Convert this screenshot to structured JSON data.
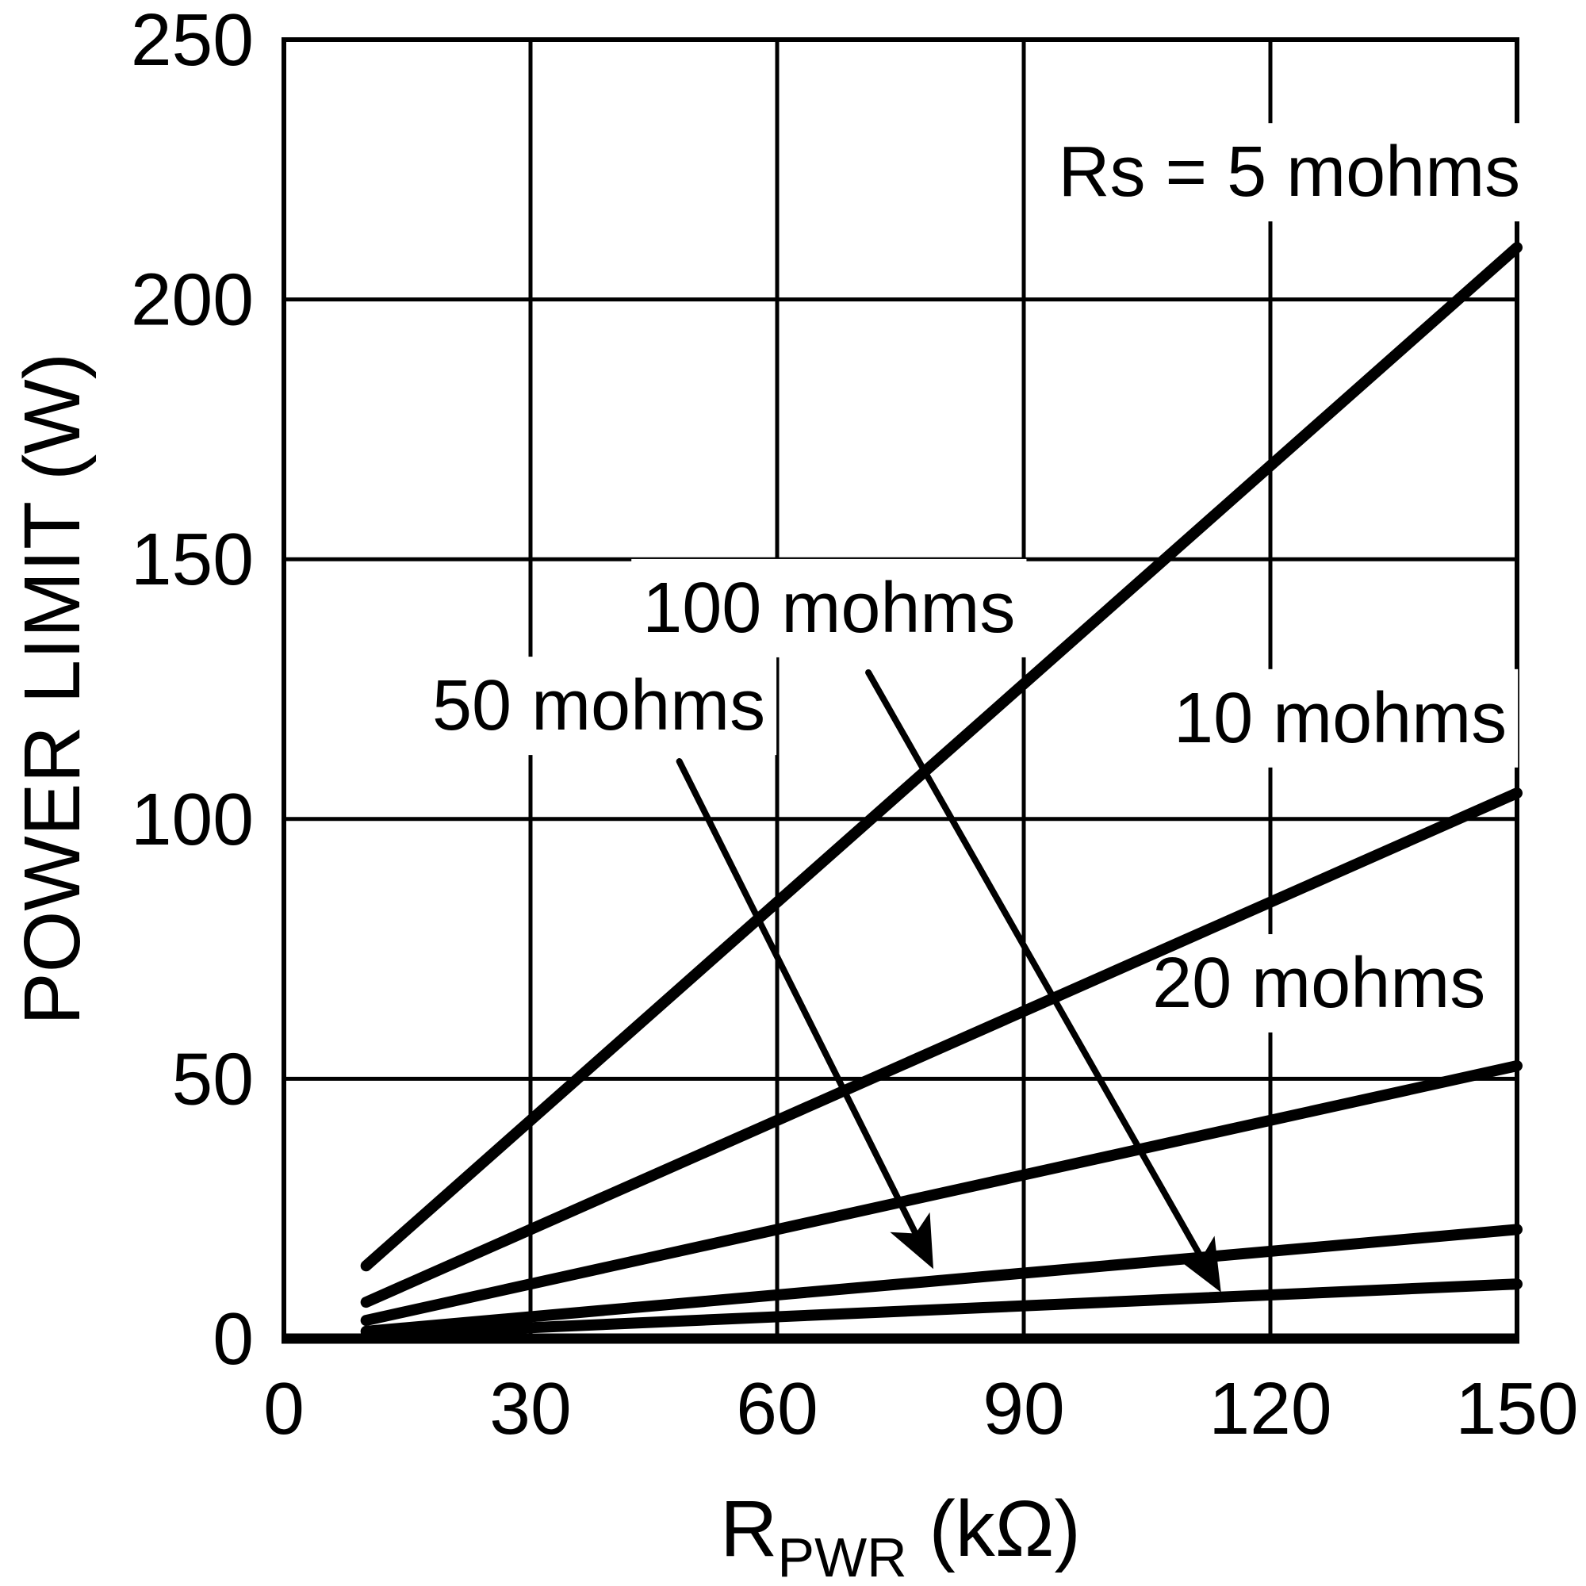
{
  "figure": {
    "background": "#ffffff",
    "ink": "#000000"
  },
  "chart_data": {
    "type": "line",
    "title": "",
    "ylabel": "POWER LIMIT (W)",
    "xlabel_base": "R",
    "xlabel_sub": "PWR",
    "xlabel_unit": " (kΩ)",
    "xlim": [
      0,
      150
    ],
    "ylim": [
      0,
      250
    ],
    "xticks": [
      0,
      30,
      60,
      90,
      120,
      150
    ],
    "yticks": [
      0,
      50,
      100,
      150,
      200,
      250
    ],
    "grid": true,
    "legend_position": "inline-labels",
    "series": [
      {
        "name": "Rs = 5 mohms",
        "rs_mohms": 5,
        "x": [
          10,
          150
        ],
        "y": [
          14,
          210
        ]
      },
      {
        "name": "10 mohms",
        "rs_mohms": 10,
        "x": [
          10,
          150
        ],
        "y": [
          7,
          105
        ]
      },
      {
        "name": "20 mohms",
        "rs_mohms": 20,
        "x": [
          10,
          150
        ],
        "y": [
          3.5,
          52.5
        ]
      },
      {
        "name": "50 mohms",
        "rs_mohms": 50,
        "x": [
          10,
          150
        ],
        "y": [
          1.4,
          21
        ]
      },
      {
        "name": "100 mohms",
        "rs_mohms": 100,
        "x": [
          10,
          150
        ],
        "y": [
          0.7,
          10.5
        ]
      }
    ],
    "labels": [
      {
        "id": "rs-5",
        "text": "Rs = 5 mohms",
        "x": 122.3,
        "y": 219.9
      },
      {
        "id": "rs-10",
        "text": "10 mohms",
        "x": 128.5,
        "y": 114.8
      },
      {
        "id": "rs-20",
        "text": "20 mohms",
        "x": 125.9,
        "y": 63.8
      },
      {
        "id": "rs-100",
        "text": "100 mohms",
        "x": 66.3,
        "y": 136.0,
        "arrow": {
          "from": {
            "x": 71.1,
            "y": 128.2
          },
          "to": {
            "x": 114.0,
            "y": 8.9
          }
        }
      },
      {
        "id": "rs-50",
        "text": "50 mohms",
        "x": 38.3,
        "y": 117.2,
        "arrow": {
          "from": {
            "x": 48.1,
            "y": 111.1
          },
          "to": {
            "x": 79.0,
            "y": 13.4
          }
        }
      }
    ]
  }
}
